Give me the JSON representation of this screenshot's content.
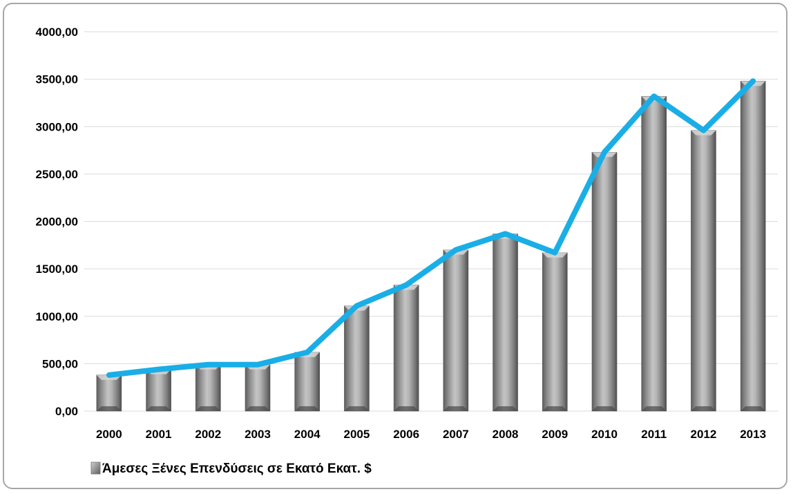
{
  "chart_data": {
    "type": "bar",
    "categories": [
      "2000",
      "2001",
      "2002",
      "2003",
      "2004",
      "2005",
      "2006",
      "2007",
      "2008",
      "2009",
      "2010",
      "2011",
      "2012",
      "2013"
    ],
    "series": [
      {
        "name": "Άμεσες Ξένες Επενδύσεις σε Εκατό Εκατ. $",
        "type": "bar",
        "color": "#8c8c8c",
        "values": [
          380,
          440,
          490,
          490,
          620,
          1110,
          1330,
          1700,
          1870,
          1670,
          2730,
          3320,
          2960,
          3480
        ]
      },
      {
        "type": "line",
        "color": "#1aaee6",
        "values": [
          380,
          440,
          490,
          490,
          620,
          1110,
          1330,
          1700,
          1870,
          1670,
          2730,
          3320,
          2960,
          3480
        ]
      }
    ],
    "yticks": [
      "0,00",
      "500,00",
      "1000,00",
      "1500,00",
      "2000,00",
      "2500,00",
      "3000,00",
      "3500,00",
      "4000,00"
    ],
    "ylim": [
      0,
      4000
    ],
    "grid": true,
    "legend_position": "bottom-left",
    "legend_label": "Άμεσες Ξένες Επενδύσεις σε Εκατό Εκατ. $"
  }
}
